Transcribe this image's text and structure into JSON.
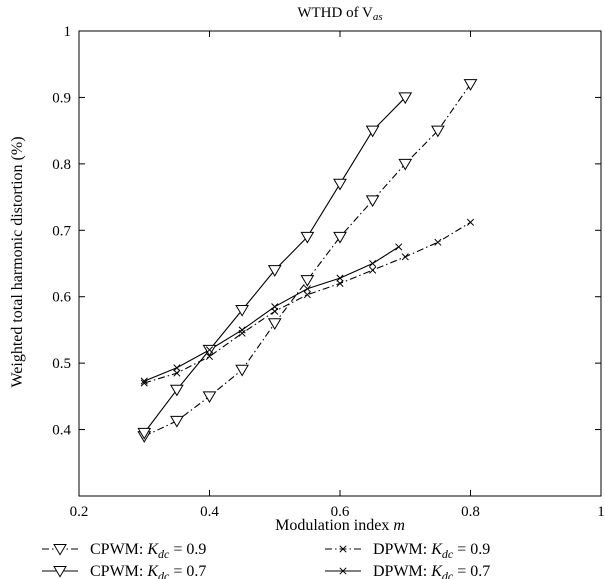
{
  "chart_data": {
    "type": "line",
    "title": "WTHD of V",
    "title_subscript": "as",
    "xlabel": "Modulation index",
    "xlabel_var": "m",
    "ylabel": "Weighted total harmonic distortion (%)",
    "xlim": [
      0.2,
      1
    ],
    "ylim": [
      0.3,
      1
    ],
    "xticks": [
      0.2,
      0.4,
      0.6,
      0.8,
      1
    ],
    "xtick_labels": [
      "0.2",
      "0.4",
      "0.6",
      "0.8",
      "1"
    ],
    "yticks": [
      0.4,
      0.5,
      0.6,
      0.7,
      0.8,
      0.9,
      1
    ],
    "ytick_labels": [
      "0.4",
      "0.5",
      "0.6",
      "0.7",
      "0.8",
      "0.9",
      "1"
    ],
    "grid": false,
    "legend_position": "bottom",
    "series": [
      {
        "name": "CPWM: K",
        "name_subscript": "dc",
        "name_suffix": " = 0.9",
        "line_style": "dashdot",
        "marker": "triangle-down",
        "x": [
          0.3,
          0.35,
          0.4,
          0.45,
          0.5,
          0.55,
          0.6,
          0.65,
          0.7,
          0.75,
          0.8
        ],
        "y": [
          0.39,
          0.413,
          0.45,
          0.49,
          0.56,
          0.625,
          0.69,
          0.745,
          0.8,
          0.85,
          0.92
        ]
      },
      {
        "name": "CPWM: K",
        "name_subscript": "dc",
        "name_suffix": " = 0.7",
        "line_style": "solid",
        "marker": "triangle-down",
        "x": [
          0.3,
          0.35,
          0.4,
          0.45,
          0.5,
          0.55,
          0.6,
          0.65,
          0.7
        ],
        "y": [
          0.395,
          0.46,
          0.52,
          0.58,
          0.64,
          0.69,
          0.77,
          0.85,
          0.9
        ]
      },
      {
        "name": "DPWM: K",
        "name_subscript": "dc",
        "name_suffix": " = 0.9",
        "line_style": "dashdot",
        "marker": "x",
        "x": [
          0.3,
          0.35,
          0.4,
          0.45,
          0.5,
          0.55,
          0.6,
          0.65,
          0.7,
          0.75,
          0.8
        ],
        "y": [
          0.47,
          0.485,
          0.51,
          0.545,
          0.578,
          0.603,
          0.62,
          0.64,
          0.66,
          0.682,
          0.712
        ]
      },
      {
        "name": "DPWM: K",
        "name_subscript": "dc",
        "name_suffix": " = 0.7",
        "line_style": "solid",
        "marker": "x",
        "x": [
          0.3,
          0.35,
          0.4,
          0.45,
          0.5,
          0.55,
          0.6,
          0.65,
          0.69
        ],
        "y": [
          0.473,
          0.493,
          0.52,
          0.55,
          0.585,
          0.612,
          0.628,
          0.65,
          0.675
        ]
      }
    ]
  }
}
